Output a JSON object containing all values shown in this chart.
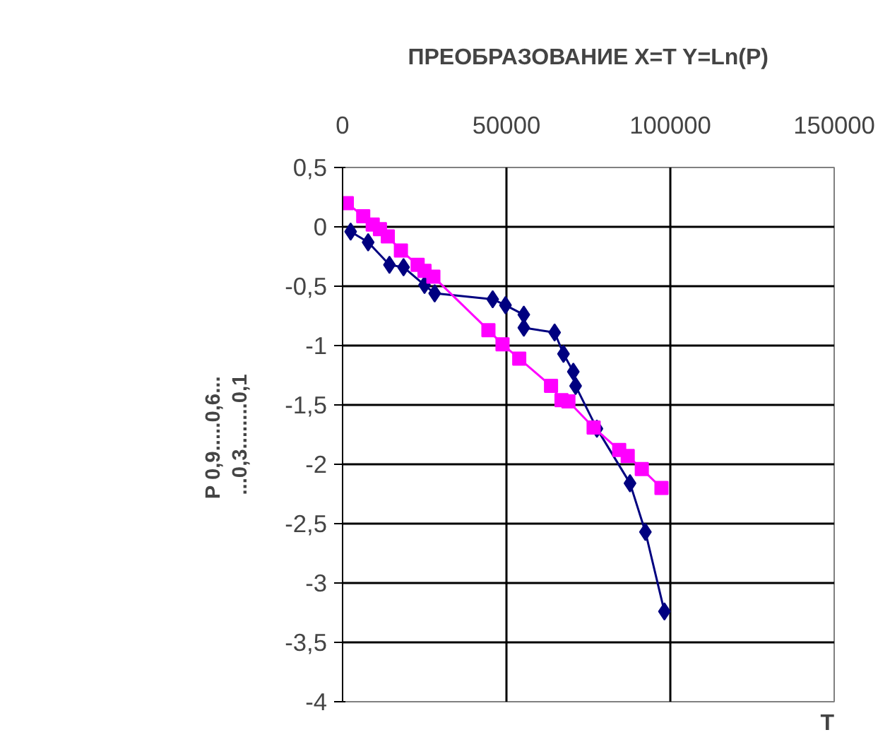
{
  "chart_data": {
    "type": "line",
    "title": "ПРЕОБРАЗОВАНИЕ X=T Y=Ln(P)",
    "xlabel": "T",
    "ylabel": "P  0,9.....0,6...\n...0,3........0,1",
    "xlim": [
      0,
      150000
    ],
    "xticks": [
      0,
      50000,
      100000,
      150000
    ],
    "ylim": [
      -4,
      0.5
    ],
    "yticks": [
      {
        "value": 0.5,
        "label": "0,5"
      },
      0,
      {
        "value": -0.5,
        "label": "-0,5"
      },
      -1,
      {
        "value": -1.5,
        "label": "-1,5"
      },
      -2,
      {
        "value": -2.5,
        "label": "-2,5"
      },
      -3,
      {
        "value": -3.5,
        "label": "-3,5"
      },
      -4
    ],
    "grid": true,
    "series": [
      {
        "color": "#000080",
        "marker": "diamond",
        "x": [
          2460,
          7800,
          14300,
          18600,
          25000,
          28100,
          45800,
          49700,
          55300,
          55300,
          64700,
          67400,
          70400,
          71100,
          77600,
          87700,
          92400,
          98200
        ],
        "values": [
          -0.04,
          -0.13,
          -0.32,
          -0.34,
          -0.49,
          -0.56,
          -0.61,
          -0.66,
          -0.74,
          -0.85,
          -0.89,
          -1.07,
          -1.22,
          -1.34,
          -1.7,
          -2.16,
          -2.57,
          -3.24
        ]
      },
      {
        "color": "#ff00ff",
        "marker": "square",
        "x": [
          1300,
          6300,
          9200,
          11400,
          13800,
          17800,
          22900,
          25000,
          27700,
          44500,
          48800,
          53900,
          63600,
          66800,
          68900,
          76600,
          84400,
          87000,
          91300,
          97300
        ],
        "values": [
          0.2,
          0.09,
          0.02,
          -0.02,
          -0.08,
          -0.2,
          -0.32,
          -0.37,
          -0.42,
          -0.87,
          -0.99,
          -1.11,
          -1.34,
          -1.46,
          -1.47,
          -1.69,
          -1.88,
          -1.93,
          -2.04,
          -2.2
        ]
      }
    ]
  }
}
